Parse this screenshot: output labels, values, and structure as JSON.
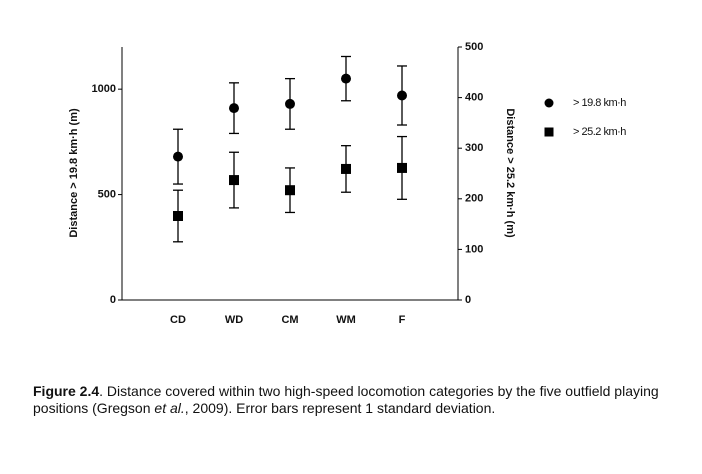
{
  "chart_data": {
    "type": "errorbar",
    "categories": [
      "CD",
      "WD",
      "CM",
      "WM",
      "F"
    ],
    "ylabel": "Distance > 19.8 km·h (m)",
    "y2label": "Distance > 25.2 km·h (m)",
    "ylim": [
      0,
      1200
    ],
    "yticks": [
      0,
      500,
      1000
    ],
    "y2lim": [
      0,
      500
    ],
    "y2ticks": [
      0,
      100,
      200,
      300,
      400,
      500
    ],
    "legend": "right",
    "series": [
      {
        "name": "> 19.8 km·h",
        "marker": "circle",
        "color": "#000000",
        "values": [
          680,
          910,
          930,
          1050,
          970
        ],
        "errors": [
          130,
          120,
          120,
          105,
          140
        ]
      },
      {
        "name": "> 25.2 km·h",
        "marker": "square",
        "color": "#000000",
        "axis": "y2",
        "values": [
          166,
          237,
          217,
          259,
          261
        ],
        "errors": [
          51,
          55,
          44,
          46,
          62
        ]
      }
    ]
  },
  "caption": {
    "label": "Figure 2.4",
    "parts": [
      ". Distance covered within two high-speed locomotion categories by the five outfield playing positions (Gregson ",
      "et al.",
      ", 2009). Error bars represent 1 standard deviation."
    ]
  }
}
